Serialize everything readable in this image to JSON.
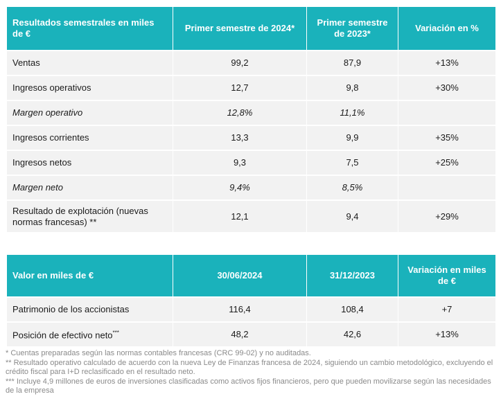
{
  "table1": {
    "headers": [
      "Resultados semestrales en miles de €",
      "Primer semestre de 2024*",
      "Primer semestre de 2023*",
      "Variación en %"
    ],
    "rows": [
      {
        "label": "Ventas",
        "v1": "99,2",
        "v2": "87,9",
        "var": "+13%",
        "italic": false
      },
      {
        "label": "Ingresos operativos",
        "v1": "12,7",
        "v2": "9,8",
        "var": "+30%",
        "italic": false
      },
      {
        "label": "Margen operativo",
        "v1": "12,8%",
        "v2": "11,1%",
        "var": "",
        "italic": true
      },
      {
        "label": "Ingresos corrientes",
        "v1": "13,3",
        "v2": "9,9",
        "var": "+35%",
        "italic": false
      },
      {
        "label": "Ingresos netos",
        "v1": "9,3",
        "v2": "7,5",
        "var": "+25%",
        "italic": false
      },
      {
        "label": "Margen neto",
        "v1": "9,4%",
        "v2": "8,5%",
        "var": "",
        "italic": true
      },
      {
        "label": "Resultado de explotación (nuevas normas francesas) **",
        "v1": "12,1",
        "v2": "9,4",
        "var": "+29%",
        "italic": false
      }
    ]
  },
  "table2": {
    "headers": [
      "Valor en miles de €",
      "30/06/2024",
      "31/12/2023",
      "Variación en miles de  €"
    ],
    "rows": [
      {
        "label": "Patrimonio de los accionistas",
        "sup": "",
        "v1": "116,4",
        "v2": "108,4",
        "var": "+7"
      },
      {
        "label": "Posición de efectivo neto",
        "sup": "***",
        "v1": "48,2",
        "v2": "42,6",
        "var": "+13%"
      }
    ]
  },
  "notes": [
    "* Cuentas preparadas según las normas contables francesas (CRC 99-02) y no auditadas.",
    "** Resultado operativo calculado de acuerdo con la nueva Ley de Finanzas francesa de 2024, siguiendo un cambio metodológico, excluyendo el crédito fiscal para I+D reclasificado en el resultado neto.",
    "*** Incluye 4,9 millones de euros de inversiones clasificadas como activos fijos financieros, pero que pueden movilizarse según las necesidades de la empresa"
  ],
  "colors": {
    "header_bg": "#1ab2bb",
    "row_bg": "#f2f2f2",
    "note_text": "#8a8a8a"
  }
}
